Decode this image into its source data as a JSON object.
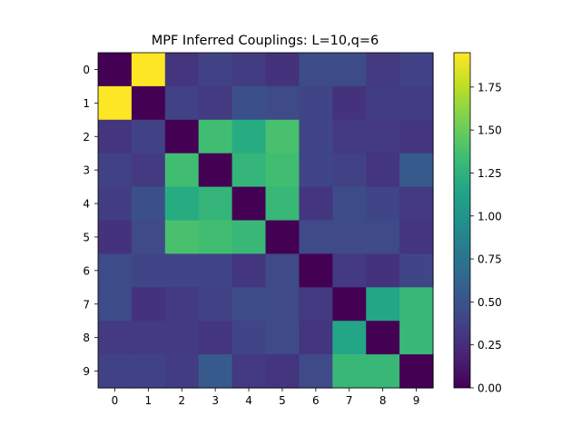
{
  "chart_data": {
    "type": "heatmap",
    "title": "MPF Inferred Couplings: L=10,q=6",
    "xlabel": "",
    "ylabel": "",
    "x_categories": [
      "0",
      "1",
      "2",
      "3",
      "4",
      "5",
      "6",
      "7",
      "8",
      "9"
    ],
    "y_categories": [
      "0",
      "1",
      "2",
      "3",
      "4",
      "5",
      "6",
      "7",
      "8",
      "9"
    ],
    "values": [
      [
        0.0,
        1.95,
        0.3,
        0.38,
        0.35,
        0.28,
        0.45,
        0.45,
        0.33,
        0.38
      ],
      [
        1.95,
        0.0,
        0.38,
        0.33,
        0.48,
        0.43,
        0.4,
        0.28,
        0.35,
        0.35
      ],
      [
        0.3,
        0.38,
        0.0,
        1.35,
        1.2,
        1.38,
        0.4,
        0.33,
        0.33,
        0.3
      ],
      [
        0.38,
        0.33,
        1.35,
        0.0,
        1.28,
        1.35,
        0.4,
        0.38,
        0.3,
        0.55
      ],
      [
        0.35,
        0.48,
        1.2,
        1.28,
        0.0,
        1.3,
        0.3,
        0.45,
        0.4,
        0.33
      ],
      [
        0.28,
        0.43,
        1.38,
        1.35,
        1.3,
        0.0,
        0.43,
        0.43,
        0.43,
        0.3
      ],
      [
        0.45,
        0.4,
        0.4,
        0.4,
        0.3,
        0.43,
        0.0,
        0.33,
        0.28,
        0.4
      ],
      [
        0.45,
        0.28,
        0.33,
        0.38,
        0.45,
        0.43,
        0.33,
        0.0,
        1.15,
        1.3
      ],
      [
        0.33,
        0.33,
        0.33,
        0.3,
        0.4,
        0.43,
        0.3,
        1.15,
        0.0,
        1.3
      ],
      [
        0.38,
        0.38,
        0.35,
        0.55,
        0.33,
        0.3,
        0.43,
        1.3,
        1.3,
        0.0
      ]
    ],
    "colormap": "viridis",
    "color_range": [
      0.0,
      1.95
    ],
    "colorbar_ticks": [
      0.0,
      0.25,
      0.5,
      0.75,
      1.0,
      1.25,
      1.5,
      1.75
    ],
    "colorbar_tick_labels": [
      "0.00",
      "0.25",
      "0.50",
      "0.75",
      "1.00",
      "1.25",
      "1.50",
      "1.75"
    ],
    "colorbar_position": "right",
    "grid": false,
    "legend": "none"
  }
}
